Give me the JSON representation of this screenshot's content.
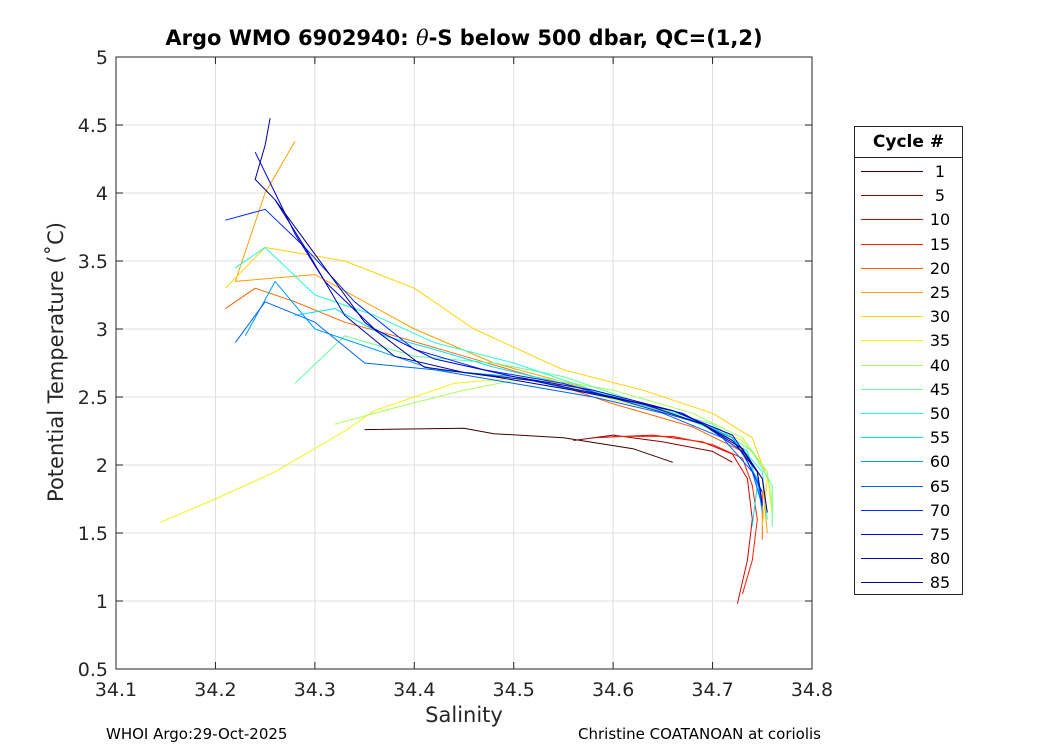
{
  "chart_data": {
    "type": "line",
    "title_prefix": "Argo WMO 6902940: ",
    "title_theta": "θ",
    "title_suffix": "-S below 500 dbar,  QC=(1,2)",
    "xlabel": "Salinity",
    "ylabel": "Potential Temperature (˚C)",
    "xlim": [
      34.1,
      34.8
    ],
    "ylim": [
      0.5,
      5
    ],
    "xticks": [
      34.1,
      34.2,
      34.3,
      34.4,
      34.5,
      34.6,
      34.7,
      34.8
    ],
    "xtick_labels": [
      "34.1",
      "34.2",
      "34.3",
      "34.4",
      "34.5",
      "34.6",
      "34.7",
      "34.8"
    ],
    "yticks": [
      0.5,
      1,
      1.5,
      2,
      2.5,
      3,
      3.5,
      4,
      4.5,
      5
    ],
    "ytick_labels": [
      "0.5",
      "1",
      "1.5",
      "2",
      "2.5",
      "3",
      "3.5",
      "4",
      "4.5",
      "5"
    ],
    "grid": true,
    "legend_title": "Cycle #",
    "legend_position": "outside-right",
    "legend": [
      {
        "label": "1",
        "color": "#400000"
      },
      {
        "label": "5",
        "color": "#880000"
      },
      {
        "label": "10",
        "color": "#d80000"
      },
      {
        "label": "15",
        "color": "#ff2000"
      },
      {
        "label": "20",
        "color": "#ff6400"
      },
      {
        "label": "25",
        "color": "#ffa000"
      },
      {
        "label": "30",
        "color": "#ffd400"
      },
      {
        "label": "35",
        "color": "#eaff14"
      },
      {
        "label": "40",
        "color": "#a8ff58"
      },
      {
        "label": "45",
        "color": "#64ff9a"
      },
      {
        "label": "50",
        "color": "#28ffd6"
      },
      {
        "label": "55",
        "color": "#00e0ff"
      },
      {
        "label": "60",
        "color": "#00a0ff"
      },
      {
        "label": "65",
        "color": "#0064ff"
      },
      {
        "label": "70",
        "color": "#0028ff"
      },
      {
        "label": "75",
        "color": "#0000e0"
      },
      {
        "label": "80",
        "color": "#0000b0"
      },
      {
        "label": "85",
        "color": "#000090"
      }
    ],
    "series": [
      {
        "name": "1",
        "color": "#400000",
        "x": [
          34.35,
          34.45,
          34.48,
          34.55,
          34.62,
          34.66
        ],
        "y": [
          2.26,
          2.27,
          2.23,
          2.2,
          2.12,
          2.02
        ]
      },
      {
        "name": "5",
        "color": "#880000",
        "x": [
          34.56,
          34.6,
          34.65,
          34.7,
          34.72
        ],
        "y": [
          2.18,
          2.22,
          2.17,
          2.1,
          2.02
        ]
      },
      {
        "name": "10",
        "color": "#d80000",
        "x": [
          34.58,
          34.64,
          34.69,
          34.72,
          34.735,
          34.74,
          34.735,
          34.725
        ],
        "y": [
          2.2,
          2.22,
          2.17,
          2.08,
          1.9,
          1.6,
          1.3,
          0.98
        ]
      },
      {
        "name": "15",
        "color": "#ff2000",
        "x": [
          34.6,
          34.66,
          34.7,
          34.73,
          34.74,
          34.745,
          34.74,
          34.73
        ],
        "y": [
          2.21,
          2.21,
          2.15,
          2.05,
          1.85,
          1.6,
          1.3,
          1.05
        ]
      },
      {
        "name": "20",
        "color": "#ff6400",
        "x": [
          34.21,
          34.24,
          34.28,
          34.33,
          34.38,
          34.45,
          34.52,
          34.6,
          34.68,
          34.73,
          34.75,
          34.75
        ],
        "y": [
          3.15,
          3.3,
          3.2,
          3.05,
          2.95,
          2.8,
          2.65,
          2.45,
          2.28,
          2.1,
          1.8,
          1.45
        ]
      },
      {
        "name": "25",
        "color": "#ffa000",
        "x": [
          34.28,
          34.25,
          34.22,
          34.3,
          34.4,
          34.48,
          34.58,
          34.67,
          34.72,
          34.75,
          34.755
        ],
        "y": [
          4.38,
          4.0,
          3.35,
          3.4,
          3.0,
          2.75,
          2.55,
          2.35,
          2.2,
          1.9,
          1.5
        ]
      },
      {
        "name": "30",
        "color": "#ffd400",
        "x": [
          34.21,
          34.25,
          34.33,
          34.4,
          34.46,
          34.55,
          34.63,
          34.7,
          34.74,
          34.755,
          34.75
        ],
        "y": [
          3.3,
          3.6,
          3.5,
          3.3,
          3.0,
          2.7,
          2.55,
          2.38,
          2.2,
          1.9,
          1.55
        ]
      },
      {
        "name": "35",
        "color": "#eaff14",
        "x": [
          34.145,
          34.2,
          34.26,
          34.33,
          34.36,
          34.4,
          34.44,
          34.52,
          34.6,
          34.68,
          34.73,
          34.755,
          34.76
        ],
        "y": [
          1.58,
          1.75,
          1.95,
          2.25,
          2.4,
          2.5,
          2.6,
          2.65,
          2.48,
          2.33,
          2.18,
          1.95,
          1.62
        ]
      },
      {
        "name": "40",
        "color": "#a8ff58",
        "x": [
          34.32,
          34.38,
          34.45,
          34.52,
          34.6,
          34.68,
          34.73,
          34.755,
          34.76
        ],
        "y": [
          2.3,
          2.42,
          2.55,
          2.65,
          2.55,
          2.38,
          2.2,
          1.95,
          1.7
        ]
      },
      {
        "name": "45",
        "color": "#64ff9a",
        "x": [
          34.28,
          34.33,
          34.4,
          34.48,
          34.55,
          34.63,
          34.7,
          34.74,
          34.76,
          34.76
        ],
        "y": [
          2.6,
          2.95,
          2.8,
          2.75,
          2.65,
          2.45,
          2.3,
          2.1,
          1.85,
          1.55
        ]
      },
      {
        "name": "50",
        "color": "#28ffd6",
        "x": [
          34.22,
          34.25,
          34.3,
          34.36,
          34.42,
          34.5,
          34.58,
          34.66,
          34.72,
          34.75,
          34.755
        ],
        "y": [
          3.45,
          3.6,
          3.25,
          3.1,
          2.9,
          2.75,
          2.55,
          2.38,
          2.2,
          1.95,
          1.6
        ]
      },
      {
        "name": "55",
        "color": "#00e0ff",
        "x": [
          34.28,
          34.32,
          34.37,
          34.42,
          34.48,
          34.56,
          34.64,
          34.7,
          34.735,
          34.745,
          34.74
        ],
        "y": [
          3.1,
          3.15,
          2.95,
          2.85,
          2.72,
          2.58,
          2.42,
          2.28,
          2.1,
          1.85,
          1.55
        ]
      },
      {
        "name": "60",
        "color": "#00a0ff",
        "x": [
          34.23,
          34.26,
          34.3,
          34.36,
          34.42,
          34.5,
          34.58,
          34.66,
          34.72,
          34.745,
          34.75
        ],
        "y": [
          2.95,
          3.35,
          3.0,
          2.85,
          2.7,
          2.65,
          2.52,
          2.4,
          2.2,
          1.9,
          1.65
        ]
      },
      {
        "name": "65",
        "color": "#0064ff",
        "x": [
          34.22,
          34.25,
          34.3,
          34.35,
          34.42,
          34.5,
          34.58,
          34.65,
          34.71,
          34.74,
          34.75
        ],
        "y": [
          2.9,
          3.2,
          3.05,
          2.75,
          2.7,
          2.6,
          2.5,
          2.38,
          2.2,
          1.95,
          1.7
        ]
      },
      {
        "name": "70",
        "color": "#0028ff",
        "x": [
          34.21,
          34.25,
          34.29,
          34.34,
          34.4,
          34.47,
          34.55,
          34.62,
          34.69,
          34.73,
          34.75
        ],
        "y": [
          3.8,
          3.88,
          3.6,
          3.2,
          2.85,
          2.7,
          2.6,
          2.45,
          2.3,
          2.1,
          1.8
        ]
      },
      {
        "name": "75",
        "color": "#0000e0",
        "x": [
          34.24,
          34.26,
          34.28,
          34.31,
          34.36,
          34.42,
          34.5,
          34.58,
          34.66,
          34.72,
          34.745,
          34.75
        ],
        "y": [
          4.3,
          4.0,
          3.7,
          3.35,
          3.0,
          2.78,
          2.65,
          2.55,
          2.4,
          2.22,
          1.95,
          1.7
        ]
      },
      {
        "name": "80",
        "color": "#0000b0",
        "x": [
          34.26,
          34.29,
          34.33,
          34.38,
          34.45,
          34.52,
          34.6,
          34.67,
          34.72,
          34.745,
          34.75
        ],
        "y": [
          3.95,
          3.6,
          3.1,
          2.8,
          2.68,
          2.62,
          2.5,
          2.38,
          2.18,
          1.95,
          1.72
        ]
      },
      {
        "name": "85",
        "color": "#000090",
        "x": [
          34.255,
          34.25,
          34.24,
          34.26,
          34.3,
          34.35,
          34.41,
          34.48,
          34.56,
          34.63,
          34.69,
          34.73,
          34.75,
          34.755
        ],
        "y": [
          4.55,
          4.35,
          4.1,
          3.95,
          3.55,
          3.05,
          2.72,
          2.65,
          2.55,
          2.45,
          2.3,
          2.12,
          1.9,
          1.65
        ]
      }
    ]
  },
  "footer": {
    "left": "WHOI Argo:29-Oct-2025",
    "right": "Christine COATANOAN at coriolis"
  }
}
